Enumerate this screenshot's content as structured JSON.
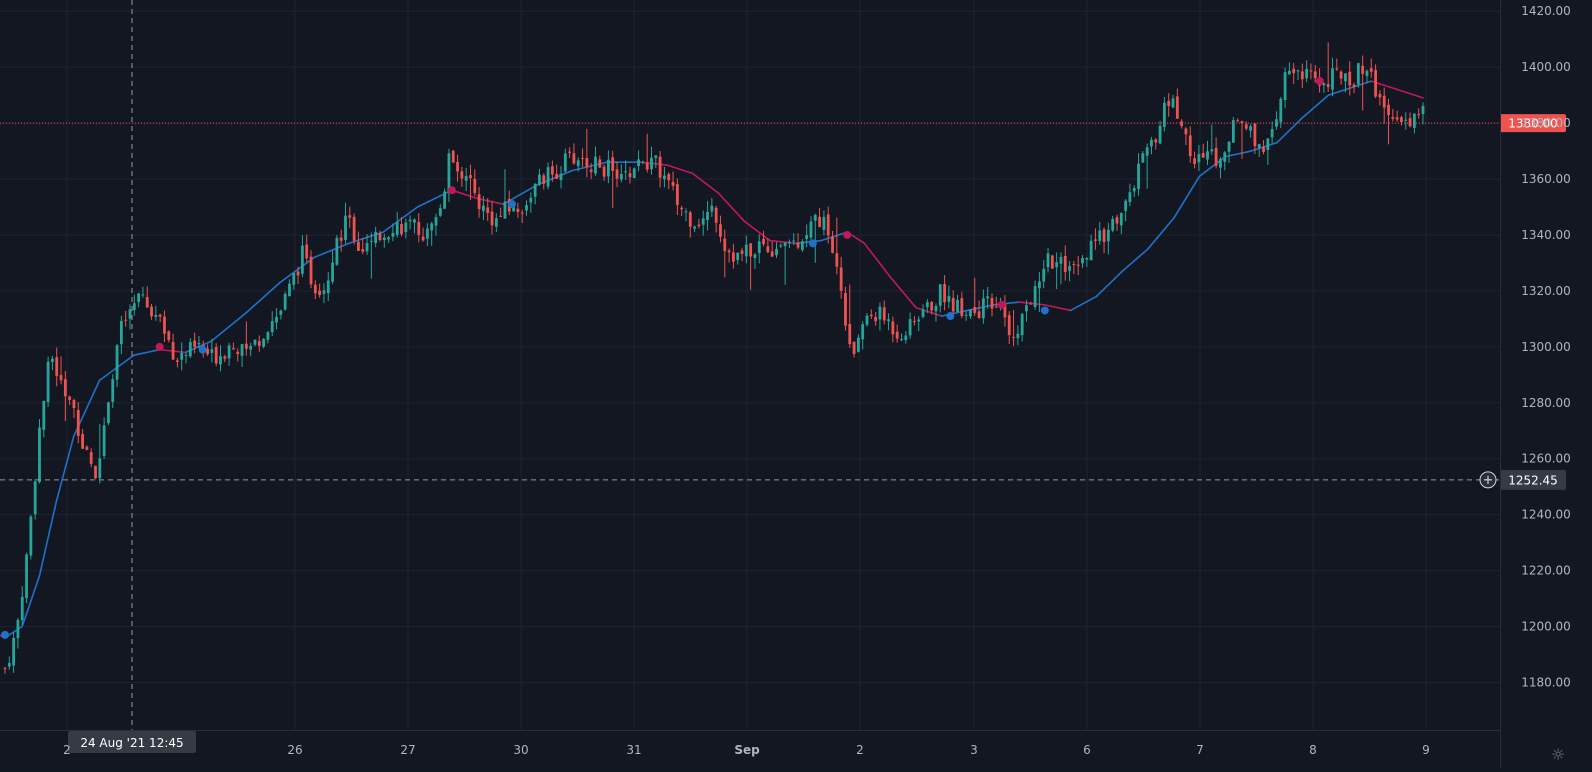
{
  "colors": {
    "background": "#131722",
    "grid": "#1f2330",
    "axis_text": "#b2b5be",
    "up": "#26a69a",
    "down": "#ef5350",
    "ma_up": "#1e73c8",
    "ma_down": "#c2185b",
    "last_price_line": "#ef5350",
    "crosshair": "#9598a1",
    "label_bg": "#363a45"
  },
  "icons": {
    "settings": "gear-icon",
    "crosshair_add": "plus-circle-icon"
  },
  "chart_data": {
    "type": "candlestick",
    "y_axis_ticks": [
      "1180.00",
      "1200.00",
      "1220.00",
      "1240.00",
      "1260.00",
      "1280.00",
      "1300.00",
      "1320.00",
      "1340.00",
      "1360.00",
      "1380.00",
      "1400.00",
      "1420.00"
    ],
    "x_axis_ticks": [
      "2",
      "26",
      "27",
      "30",
      "31",
      "Sep",
      "2",
      "3",
      "6",
      "7",
      "8",
      "9"
    ],
    "ylim": [
      1163,
      1424
    ],
    "last_price": "1380.00",
    "crosshair": {
      "price": "1252.45",
      "time": "24 Aug '21   12:45"
    },
    "grid": true,
    "series": [
      {
        "name": "",
        "kind": "close_path",
        "points": [
          [
            0,
            1185
          ],
          [
            1,
            1198
          ],
          [
            2,
            1228
          ],
          [
            3,
            1270
          ],
          [
            4,
            1298
          ],
          [
            5,
            1285
          ],
          [
            6,
            1278
          ],
          [
            7,
            1262
          ],
          [
            8,
            1255
          ],
          [
            9,
            1282
          ],
          [
            10,
            1305
          ],
          [
            11,
            1313
          ],
          [
            12,
            1318
          ],
          [
            13,
            1312
          ],
          [
            14,
            1305
          ],
          [
            15,
            1296
          ],
          [
            16,
            1298
          ],
          [
            17,
            1300
          ],
          [
            18,
            1296
          ],
          [
            19,
            1298
          ],
          [
            20,
            1302
          ],
          [
            21,
            1297
          ],
          [
            22,
            1302
          ],
          [
            23,
            1308
          ],
          [
            24,
            1312
          ],
          [
            25,
            1322
          ],
          [
            26,
            1333
          ],
          [
            27,
            1322
          ],
          [
            28,
            1322
          ],
          [
            29,
            1338
          ],
          [
            30,
            1346
          ],
          [
            31,
            1335
          ],
          [
            32,
            1336
          ],
          [
            33,
            1340
          ],
          [
            34,
            1344
          ],
          [
            35,
            1343
          ],
          [
            36,
            1342
          ],
          [
            37,
            1340
          ],
          [
            38,
            1348
          ],
          [
            39,
            1370
          ],
          [
            40,
            1362
          ],
          [
            41,
            1355
          ],
          [
            42,
            1348
          ],
          [
            43,
            1345
          ],
          [
            44,
            1350
          ],
          [
            45,
            1348
          ],
          [
            46,
            1355
          ],
          [
            47,
            1360
          ],
          [
            48,
            1362
          ],
          [
            49,
            1366
          ],
          [
            50,
            1368
          ],
          [
            51,
            1366
          ],
          [
            52,
            1364
          ],
          [
            53,
            1364
          ],
          [
            54,
            1360
          ],
          [
            55,
            1364
          ],
          [
            56,
            1366
          ],
          [
            57,
            1365
          ],
          [
            58,
            1358
          ],
          [
            59,
            1350
          ],
          [
            60,
            1346
          ],
          [
            61,
            1345
          ],
          [
            62,
            1350
          ],
          [
            63,
            1336
          ],
          [
            64,
            1332
          ],
          [
            65,
            1334
          ],
          [
            66,
            1337
          ],
          [
            67,
            1335
          ],
          [
            68,
            1338
          ],
          [
            69,
            1337
          ],
          [
            70,
            1341
          ],
          [
            71,
            1346
          ],
          [
            72,
            1342
          ],
          [
            73,
            1322
          ],
          [
            74,
            1295
          ],
          [
            75,
            1308
          ],
          [
            76,
            1312
          ],
          [
            77,
            1310
          ],
          [
            78,
            1305
          ],
          [
            79,
            1306
          ],
          [
            80,
            1312
          ],
          [
            81,
            1315
          ],
          [
            82,
            1320
          ],
          [
            83,
            1315
          ],
          [
            84,
            1314
          ],
          [
            85,
            1313
          ],
          [
            86,
            1315
          ],
          [
            87,
            1313
          ],
          [
            88,
            1305
          ],
          [
            89,
            1310
          ],
          [
            90,
            1320
          ],
          [
            91,
            1332
          ],
          [
            92,
            1330
          ],
          [
            93,
            1326
          ],
          [
            94,
            1328
          ],
          [
            95,
            1335
          ],
          [
            96,
            1340
          ],
          [
            97,
            1345
          ],
          [
            98,
            1350
          ],
          [
            99,
            1362
          ],
          [
            100,
            1370
          ],
          [
            101,
            1380
          ],
          [
            102,
            1390
          ],
          [
            103,
            1378
          ],
          [
            104,
            1365
          ],
          [
            105,
            1370
          ],
          [
            106,
            1368
          ],
          [
            107,
            1375
          ],
          [
            108,
            1382
          ],
          [
            109,
            1376
          ],
          [
            110,
            1372
          ],
          [
            111,
            1375
          ],
          [
            112,
            1398
          ],
          [
            113,
            1400
          ],
          [
            114,
            1396
          ],
          [
            115,
            1394
          ],
          [
            116,
            1396
          ],
          [
            117,
            1398
          ],
          [
            118,
            1396
          ],
          [
            119,
            1402
          ],
          [
            120,
            1390
          ],
          [
            121,
            1382
          ],
          [
            122,
            1381
          ],
          [
            123,
            1381
          ],
          [
            124,
            1384
          ]
        ]
      },
      {
        "name": "",
        "kind": "moving_average",
        "points": [
          [
            -3,
            1198
          ],
          [
            0,
            1196
          ],
          [
            4,
            1200
          ],
          [
            8,
            1218
          ],
          [
            12,
            1245
          ],
          [
            16,
            1268
          ],
          [
            22,
            1288
          ],
          [
            30,
            1297
          ],
          [
            36,
            1299
          ],
          [
            42,
            1298
          ],
          [
            48,
            1302
          ],
          [
            56,
            1312
          ],
          [
            64,
            1323
          ],
          [
            72,
            1332
          ],
          [
            80,
            1337
          ],
          [
            88,
            1341
          ],
          [
            96,
            1350
          ],
          [
            104,
            1356
          ],
          [
            110,
            1353
          ],
          [
            116,
            1351
          ],
          [
            124,
            1358
          ],
          [
            132,
            1363
          ],
          [
            140,
            1366
          ],
          [
            148,
            1366
          ],
          [
            154,
            1365
          ],
          [
            160,
            1362
          ],
          [
            166,
            1355
          ],
          [
            172,
            1345
          ],
          [
            178,
            1338
          ],
          [
            184,
            1337
          ],
          [
            190,
            1338
          ],
          [
            196,
            1341
          ],
          [
            200,
            1337
          ],
          [
            206,
            1325
          ],
          [
            212,
            1314
          ],
          [
            218,
            1311
          ],
          [
            224,
            1313
          ],
          [
            230,
            1315
          ],
          [
            236,
            1316
          ],
          [
            242,
            1315
          ],
          [
            248,
            1313
          ],
          [
            254,
            1318
          ],
          [
            260,
            1327
          ],
          [
            266,
            1335
          ],
          [
            272,
            1346
          ],
          [
            278,
            1361
          ],
          [
            284,
            1368
          ],
          [
            290,
            1370
          ],
          [
            296,
            1373
          ],
          [
            302,
            1382
          ],
          [
            308,
            1390
          ],
          [
            314,
            1393
          ],
          [
            318,
            1395
          ],
          [
            324,
            1392
          ],
          [
            330,
            1389
          ]
        ]
      }
    ],
    "ma_markers": [
      {
        "x": 0,
        "y": 1197,
        "dir": "up"
      },
      {
        "x": 36,
        "y": 1300,
        "dir": "down"
      },
      {
        "x": 46,
        "y": 1299,
        "dir": "up"
      },
      {
        "x": 104,
        "y": 1356,
        "dir": "down"
      },
      {
        "x": 118,
        "y": 1351,
        "dir": "up"
      },
      {
        "x": 188,
        "y": 1337,
        "dir": "up"
      },
      {
        "x": 196,
        "y": 1340,
        "dir": "down"
      },
      {
        "x": 220,
        "y": 1311,
        "dir": "up"
      },
      {
        "x": 232,
        "y": 1315,
        "dir": "down"
      },
      {
        "x": 242,
        "y": 1313,
        "dir": "up"
      },
      {
        "x": 306,
        "y": 1395,
        "dir": "down"
      }
    ]
  }
}
